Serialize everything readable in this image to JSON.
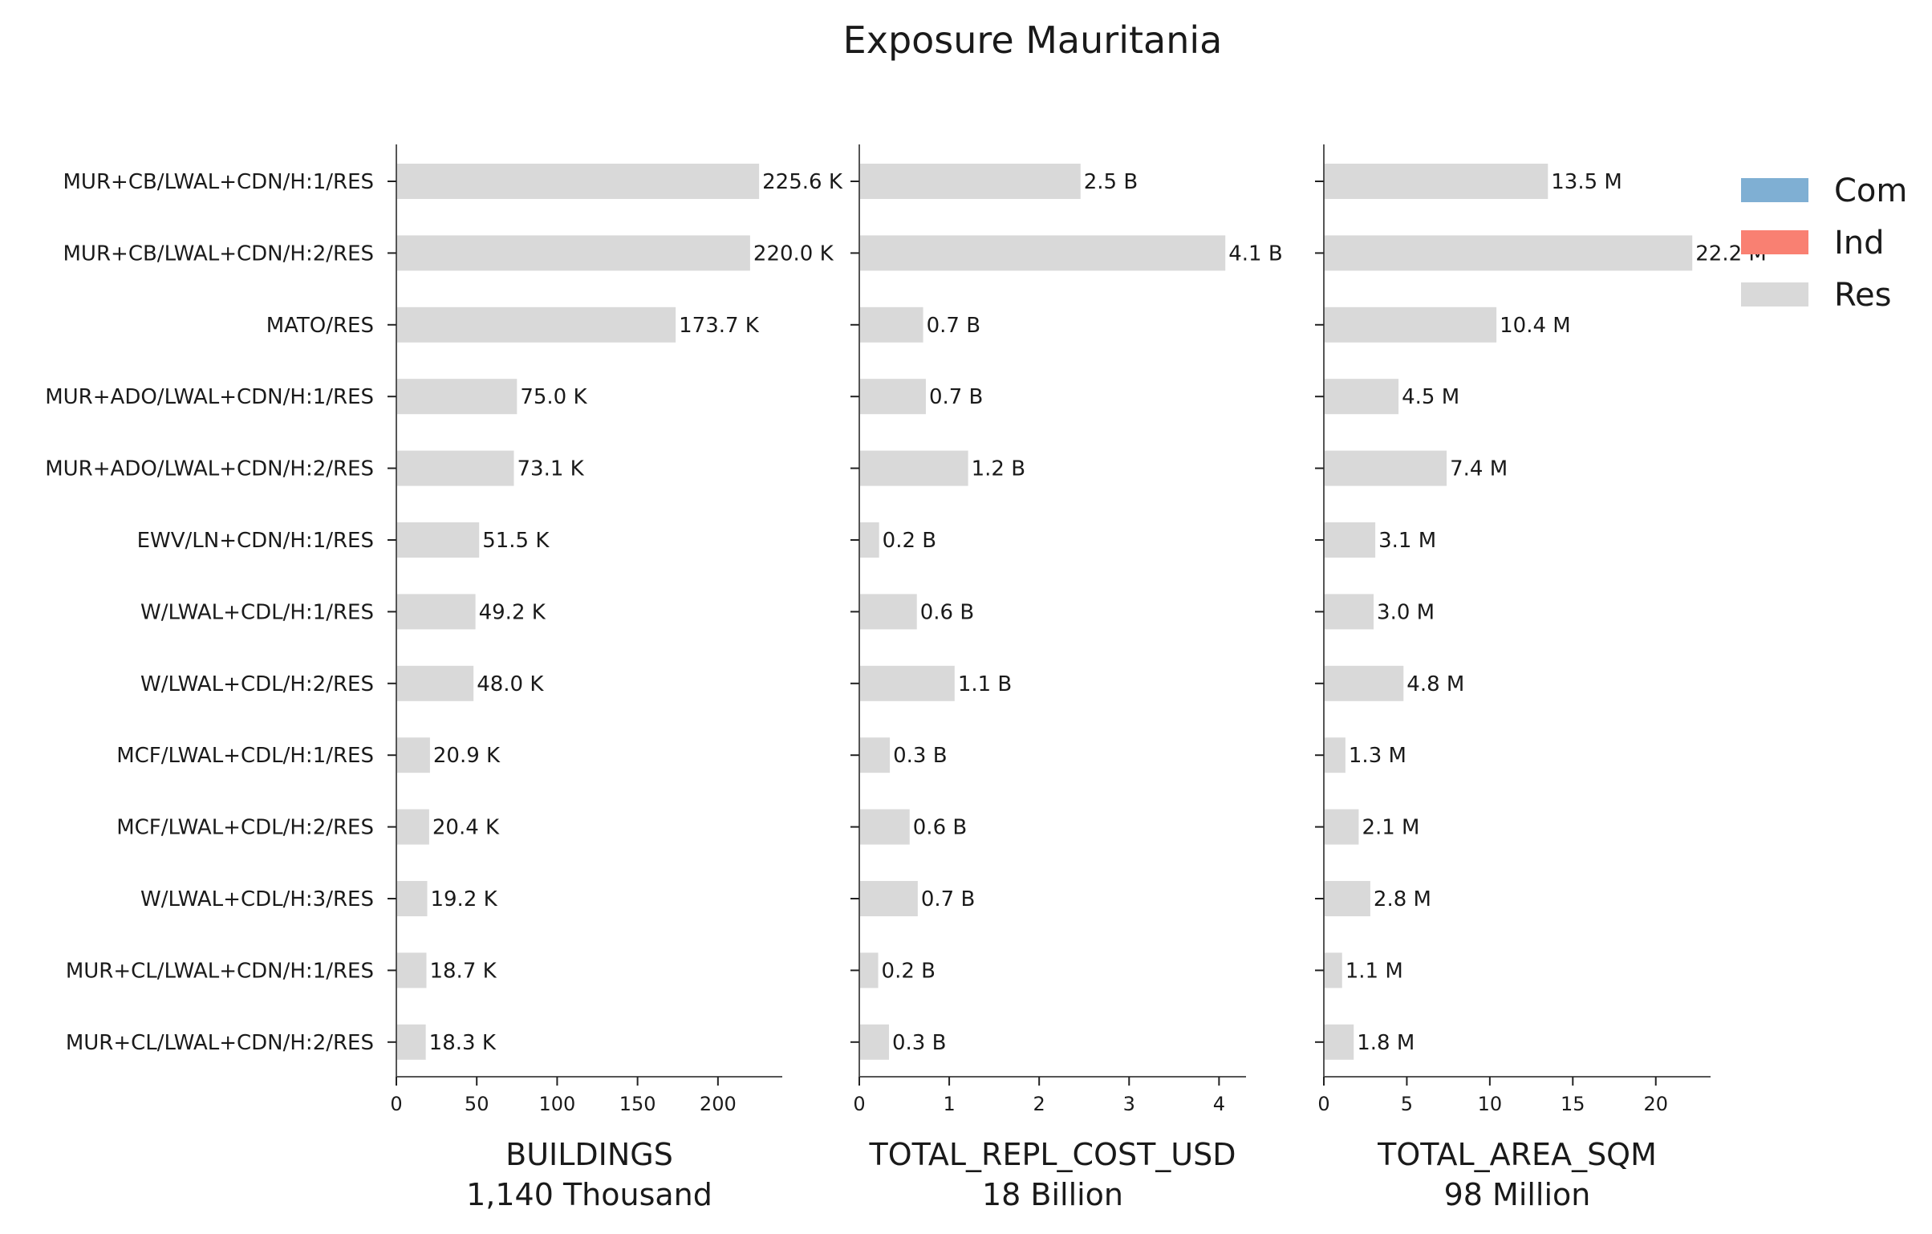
{
  "chart_data": {
    "type": "bar",
    "orientation": "horizontal",
    "title": "Exposure Mauritania",
    "categories": [
      "MUR+CB/LWAL+CDN/H:1/RES",
      "MUR+CB/LWAL+CDN/H:2/RES",
      "MATO/RES",
      "MUR+ADO/LWAL+CDN/H:1/RES",
      "MUR+ADO/LWAL+CDN/H:2/RES",
      "EWV/LN+CDN/H:1/RES",
      "W/LWAL+CDL/H:1/RES",
      "W/LWAL+CDL/H:2/RES",
      "MCF/LWAL+CDL/H:1/RES",
      "MCF/LWAL+CDL/H:2/RES",
      "W/LWAL+CDL/H:3/RES",
      "MUR+CL/LWAL+CDN/H:1/RES",
      "MUR+CL/LWAL+CDN/H:2/RES"
    ],
    "legend": {
      "placement": "top-right",
      "entries": [
        {
          "name": "Com",
          "color": "#7fafd3"
        },
        {
          "name": "Ind",
          "color": "#f98072"
        },
        {
          "name": "Res",
          "color": "#d9d9d9"
        }
      ]
    },
    "bar_color": "#d9d9d9",
    "grid": false,
    "panels": [
      {
        "xlabel": "BUILDINGS",
        "total": "1,140 Thousand",
        "xlim": [
          0,
          240
        ],
        "ticks": [
          0,
          50,
          100,
          150,
          200
        ],
        "values": [
          225.6,
          220.0,
          173.7,
          75.0,
          73.1,
          51.5,
          49.2,
          48.0,
          20.9,
          20.4,
          19.2,
          18.7,
          18.3
        ],
        "labels": [
          "225.6 K",
          "220.0 K",
          "173.7 K",
          "75.0 K",
          "73.1 K",
          "51.5 K",
          "49.2 K",
          "48.0 K",
          "20.9 K",
          "20.4 K",
          "19.2 K",
          "18.7 K",
          "18.3 K"
        ]
      },
      {
        "xlabel": "TOTAL_REPL_COST_USD",
        "total": "18 Billion",
        "xlim": [
          0,
          4.3
        ],
        "ticks": [
          0,
          1,
          2,
          3,
          4
        ],
        "values": [
          2.46,
          4.07,
          0.71,
          0.74,
          1.21,
          0.22,
          0.64,
          1.06,
          0.34,
          0.56,
          0.65,
          0.21,
          0.33
        ],
        "labels": [
          "2.5 B",
          "4.1 B",
          "0.7 B",
          "0.7 B",
          "1.2 B",
          "0.2 B",
          "0.6 B",
          "1.1 B",
          "0.3 B",
          "0.6 B",
          "0.7 B",
          "0.2 B",
          "0.3 B"
        ]
      },
      {
        "xlabel": "TOTAL_AREA_SQM",
        "total": "98 Million",
        "xlim": [
          0,
          23.3
        ],
        "ticks": [
          0,
          5,
          10,
          15,
          20
        ],
        "values": [
          13.5,
          22.2,
          10.4,
          4.5,
          7.4,
          3.1,
          3.0,
          4.8,
          1.3,
          2.1,
          2.8,
          1.1,
          1.8
        ],
        "labels": [
          "13.5 M",
          "22.2 M",
          "10.4 M",
          "4.5 M",
          "7.4 M",
          "3.1 M",
          "3.0 M",
          "4.8 M",
          "1.3 M",
          "2.1 M",
          "2.8 M",
          "1.1 M",
          "1.8 M"
        ]
      }
    ]
  }
}
